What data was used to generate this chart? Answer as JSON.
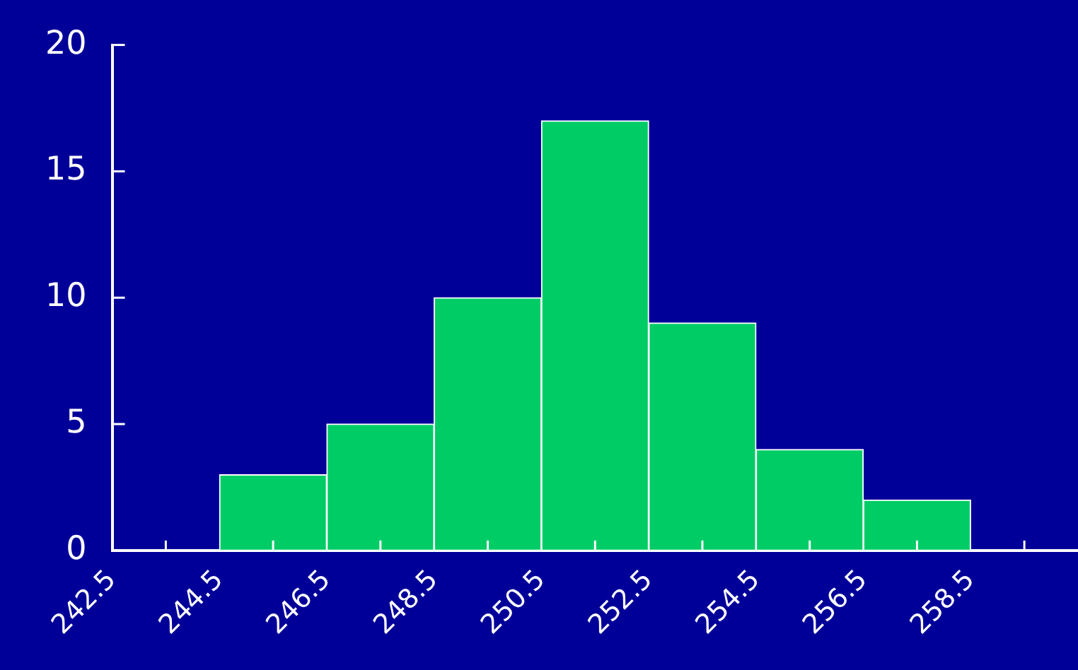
{
  "chart_data": {
    "type": "histogram",
    "bins": [
      244.5,
      246.5,
      248.5,
      250.5,
      252.5,
      254.5,
      256.5,
      258.5
    ],
    "values": [
      3,
      5,
      10,
      17,
      9,
      4,
      2
    ],
    "color": "#00cc66",
    "xlim": [
      242.5,
      260.5
    ],
    "xticks": [
      242.5,
      {
        "value": 243.5,
        "label": null
      },
      244.5,
      {
        "value": 245.5,
        "label": null
      },
      246.5,
      {
        "value": 247.5,
        "label": null
      },
      248.5,
      {
        "value": 249.5,
        "label": null
      },
      250.5,
      {
        "value": 251.5,
        "label": null
      },
      252.5,
      {
        "value": 253.5,
        "label": null
      },
      254.5,
      {
        "value": 255.5,
        "label": null
      },
      256.5,
      {
        "value": 257.5,
        "label": null
      },
      258.5,
      {
        "value": 259.5,
        "label": null
      }
    ],
    "ylim": [
      0,
      20
    ],
    "yticks": [
      0,
      5,
      10,
      15,
      20
    ],
    "grid": false,
    "legend": false
  }
}
